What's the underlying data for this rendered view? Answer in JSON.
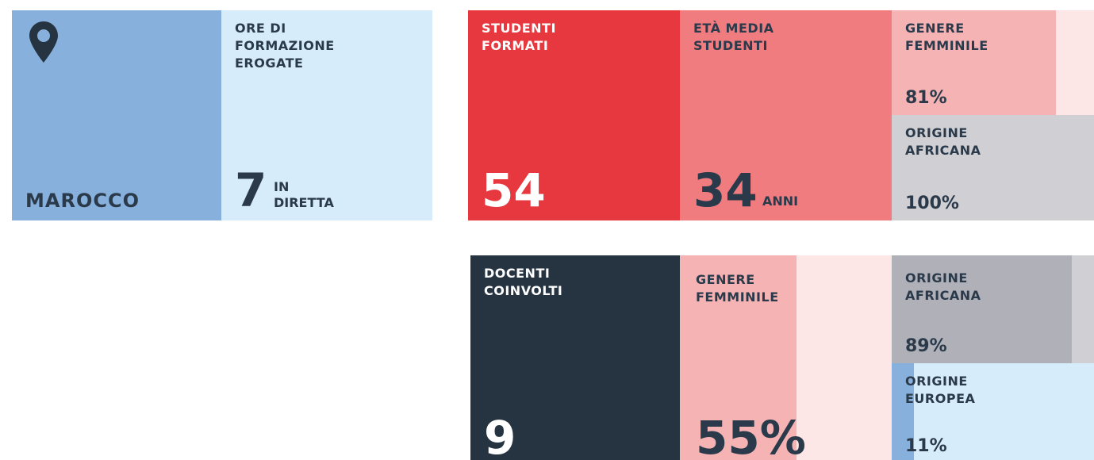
{
  "country": {
    "name": "MAROCCO"
  },
  "hours": {
    "title": "ORE DI\nFORMAZIONE\nEROGATE",
    "value": 7,
    "unit": "IN\nDIRETTA"
  },
  "students": {
    "title": "STUDENTI\nFORMATI",
    "value": 54,
    "age": {
      "title": "ETÀ MEDIA\nSTUDENTI",
      "value": 34,
      "unit": "ANNI"
    },
    "female": {
      "title": "GENERE\nFEMMINILE",
      "value": 81,
      "label": "81%"
    },
    "african": {
      "title": "ORIGINE\nAFRICANA",
      "value": 100,
      "label": "100%"
    }
  },
  "teachers": {
    "title": "DOCENTI\nCOINVOLTI",
    "value": 9,
    "female": {
      "title": "GENERE\nFEMMINILE",
      "value": 55,
      "label": "55%"
    },
    "african": {
      "title": "ORIGINE\nAFRICANA",
      "value": 89,
      "label": "89%"
    },
    "european": {
      "title": "ORIGINE\nEUROPEA",
      "value": 11,
      "label": "11%"
    }
  }
}
